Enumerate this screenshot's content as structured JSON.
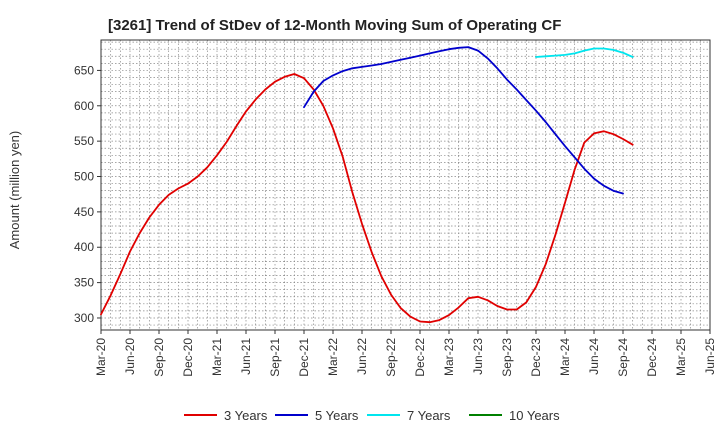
{
  "chart_data": {
    "type": "line",
    "title": "[3261]  Trend of StDev of 12-Month Moving Sum of Operating CF",
    "ylabel": "Amount (million yen)",
    "xlabel": "",
    "ylim": [
      283,
      693
    ],
    "yticks": [
      300,
      350,
      400,
      450,
      500,
      550,
      600,
      650
    ],
    "xlim": [
      0,
      63
    ],
    "xtick_step": 3,
    "x_start": "Mar-20",
    "xtick_labels": [
      "Mar-20",
      "Jun-20",
      "Sep-20",
      "Dec-20",
      "Mar-21",
      "Jun-21",
      "Sep-21",
      "Dec-21",
      "Mar-22",
      "Jun-22",
      "Sep-22",
      "Dec-22",
      "Mar-23",
      "Jun-23",
      "Sep-23",
      "Dec-23",
      "Mar-24",
      "Jun-24",
      "Sep-24",
      "Dec-24",
      "Mar-25",
      "Jun-25"
    ],
    "grid": true,
    "legend_position": "bottom",
    "series": [
      {
        "name": "3 Years",
        "color": "#e00000",
        "start_index": 0,
        "values": [
          305,
          332,
          362,
          394,
          420,
          442,
          460,
          474,
          483,
          490,
          500,
          513,
          530,
          549,
          571,
          592,
          609,
          623,
          634,
          641,
          645,
          639,
          623,
          600,
          568,
          528,
          478,
          433,
          393,
          359,
          333,
          314,
          302,
          295,
          294,
          297,
          304,
          315,
          328,
          330,
          325,
          317,
          312,
          312,
          322,
          344,
          376,
          417,
          463,
          510,
          548,
          561,
          564,
          560,
          553,
          545
        ]
      },
      {
        "name": "5 Years",
        "color": "#0000cc",
        "start_index": 21,
        "values": [
          598,
          620,
          635,
          643,
          649,
          653,
          655,
          657,
          659,
          662,
          665,
          668,
          671,
          674,
          677,
          680,
          682,
          683,
          678,
          667,
          653,
          637,
          623,
          608,
          593,
          577,
          560,
          543,
          527,
          511,
          497,
          487,
          480,
          476
        ]
      },
      {
        "name": "7 Years",
        "color": "#00e5ee",
        "start_index": 45,
        "values": [
          669,
          670,
          671,
          672,
          674,
          678,
          681,
          681,
          679,
          675,
          669
        ]
      },
      {
        "name": "10 Years",
        "color": "#008000",
        "start_index": 0,
        "values": []
      }
    ]
  }
}
